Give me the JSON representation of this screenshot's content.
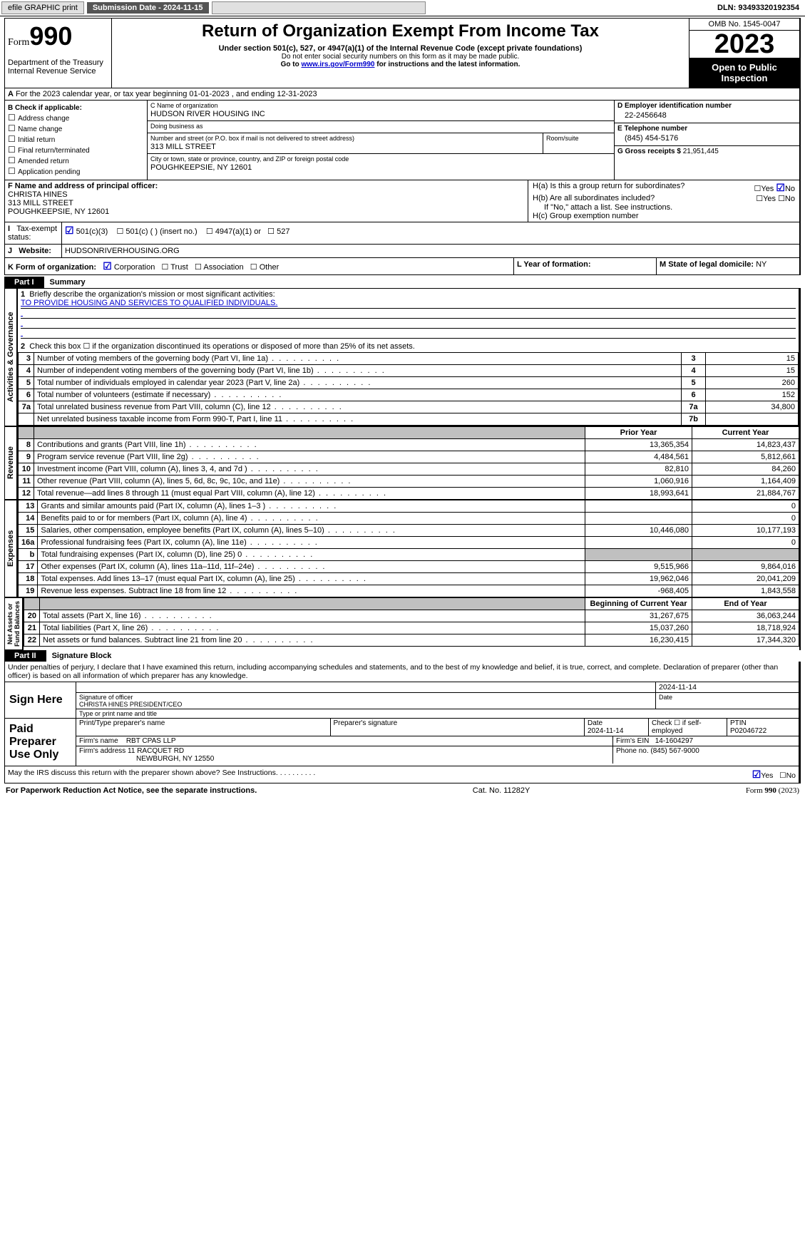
{
  "toolbar": {
    "efile": "efile GRAPHIC print",
    "submission": "Submission Date - 2024-11-15",
    "dln": "DLN: 93493320192354"
  },
  "header": {
    "form": "Form",
    "num": "990",
    "dept": "Department of the Treasury",
    "irs": "Internal Revenue Service",
    "title": "Return of Organization Exempt From Income Tax",
    "sub": "Under section 501(c), 527, or 4947(a)(1) of the Internal Revenue Code (except private foundations)",
    "warn1": "Do not enter social security numbers on this form as it may be made public.",
    "warn2pre": "Go to ",
    "warn2link": "www.irs.gov/Form990",
    "warn2post": " for instructions and the latest information.",
    "omb": "OMB No. 1545-0047",
    "year": "2023",
    "open": "Open to Public Inspection"
  },
  "A": {
    "text": "For the 2023 calendar year, or tax year beginning 01-01-2023    , and ending 12-31-2023"
  },
  "B": {
    "title": "B Check if applicable:",
    "items": [
      "Address change",
      "Name change",
      "Initial return",
      "Final return/terminated",
      "Amended return",
      "Application pending"
    ]
  },
  "C": {
    "name_lbl": "C Name of organization",
    "name": "HUDSON RIVER HOUSING INC",
    "dba_lbl": "Doing business as",
    "dba": "",
    "addr_lbl": "Number and street (or P.O. box if mail is not delivered to street address)",
    "room_lbl": "Room/suite",
    "addr": "313 MILL STREET",
    "city_lbl": "City or town, state or province, country, and ZIP or foreign postal code",
    "city": "POUGHKEEPSIE, NY  12601"
  },
  "D": {
    "lbl": "D Employer identification number",
    "val": "22-2456648"
  },
  "E": {
    "lbl": "E Telephone number",
    "val": "(845) 454-5176"
  },
  "G": {
    "lbl": "G Gross receipts $",
    "val": "21,951,445"
  },
  "F": {
    "lbl": "F  Name and address of principal officer:",
    "name": "CHRISTA HINES",
    "addr1": "313 MILL STREET",
    "addr2": "POUGHKEEPSIE, NY  12601"
  },
  "H": {
    "a": "H(a)  Is this a group return for subordinates?",
    "b": "H(b)  Are all subordinates included?",
    "note": "If \"No,\" attach a list. See instructions.",
    "c": "H(c)  Group exemption number"
  },
  "I": {
    "lbl": "Tax-exempt status:",
    "opts": [
      "501(c)(3)",
      "501(c) (  ) (insert no.)",
      "4947(a)(1) or",
      "527"
    ]
  },
  "J": {
    "lbl": "Website:",
    "val": "HUDSONRIVERHOUSING.ORG"
  },
  "K": {
    "lbl": "K Form of organization:",
    "opts": [
      "Corporation",
      "Trust",
      "Association",
      "Other"
    ]
  },
  "L": {
    "lbl": "L Year of formation:"
  },
  "M": {
    "lbl": "M State of legal domicile:",
    "val": "NY"
  },
  "partI": {
    "title": "Summary",
    "q1": "Briefly describe the organization's mission or most significant activities:",
    "mission": "TO PROVIDE HOUSING AND SERVICES TO QUALIFIED INDIVIDUALS.",
    "q2": "Check this box ☐  if the organization discontinued its operations or disposed of more than 25% of its net assets.",
    "rows_ag": [
      {
        "n": "3",
        "d": "Number of voting members of the governing body (Part VI, line 1a)",
        "b": "3",
        "v": "15"
      },
      {
        "n": "4",
        "d": "Number of independent voting members of the governing body (Part VI, line 1b)",
        "b": "4",
        "v": "15"
      },
      {
        "n": "5",
        "d": "Total number of individuals employed in calendar year 2023 (Part V, line 2a)",
        "b": "5",
        "v": "260"
      },
      {
        "n": "6",
        "d": "Total number of volunteers (estimate if necessary)",
        "b": "6",
        "v": "152"
      },
      {
        "n": "7a",
        "d": "Total unrelated business revenue from Part VIII, column (C), line 12",
        "b": "7a",
        "v": "34,800"
      },
      {
        "n": "",
        "d": "Net unrelated business taxable income from Form 990-T, Part I, line 11",
        "b": "7b",
        "v": ""
      }
    ],
    "hdr_prior": "Prior Year",
    "hdr_curr": "Current Year",
    "rows_rev": [
      {
        "n": "8",
        "d": "Contributions and grants (Part VIII, line 1h)",
        "p": "13,365,354",
        "c": "14,823,437"
      },
      {
        "n": "9",
        "d": "Program service revenue (Part VIII, line 2g)",
        "p": "4,484,561",
        "c": "5,812,661"
      },
      {
        "n": "10",
        "d": "Investment income (Part VIII, column (A), lines 3, 4, and 7d )",
        "p": "82,810",
        "c": "84,260"
      },
      {
        "n": "11",
        "d": "Other revenue (Part VIII, column (A), lines 5, 6d, 8c, 9c, 10c, and 11e)",
        "p": "1,060,916",
        "c": "1,164,409"
      },
      {
        "n": "12",
        "d": "Total revenue—add lines 8 through 11 (must equal Part VIII, column (A), line 12)",
        "p": "18,993,641",
        "c": "21,884,767"
      }
    ],
    "rows_exp": [
      {
        "n": "13",
        "d": "Grants and similar amounts paid (Part IX, column (A), lines 1–3 )",
        "p": "",
        "c": "0"
      },
      {
        "n": "14",
        "d": "Benefits paid to or for members (Part IX, column (A), line 4)",
        "p": "",
        "c": "0"
      },
      {
        "n": "15",
        "d": "Salaries, other compensation, employee benefits (Part IX, column (A), lines 5–10)",
        "p": "10,446,080",
        "c": "10,177,193"
      },
      {
        "n": "16a",
        "d": "Professional fundraising fees (Part IX, column (A), line 11e)",
        "p": "",
        "c": "0"
      },
      {
        "n": "b",
        "d": "Total fundraising expenses (Part IX, column (D), line 25) 0",
        "p": "grey",
        "c": "grey"
      },
      {
        "n": "17",
        "d": "Other expenses (Part IX, column (A), lines 11a–11d, 11f–24e)",
        "p": "9,515,966",
        "c": "9,864,016"
      },
      {
        "n": "18",
        "d": "Total expenses. Add lines 13–17 (must equal Part IX, column (A), line 25)",
        "p": "19,962,046",
        "c": "20,041,209"
      },
      {
        "n": "19",
        "d": "Revenue less expenses. Subtract line 18 from line 12",
        "p": "-968,405",
        "c": "1,843,558"
      }
    ],
    "hdr_begin": "Beginning of Current Year",
    "hdr_end": "End of Year",
    "rows_na": [
      {
        "n": "20",
        "d": "Total assets (Part X, line 16)",
        "p": "31,267,675",
        "c": "36,063,244"
      },
      {
        "n": "21",
        "d": "Total liabilities (Part X, line 26)",
        "p": "15,037,260",
        "c": "18,718,924"
      },
      {
        "n": "22",
        "d": "Net assets or fund balances. Subtract line 21 from line 20",
        "p": "16,230,415",
        "c": "17,344,320"
      }
    ]
  },
  "partII": {
    "title": "Signature Block",
    "perjury": "Under penalties of perjury, I declare that I have examined this return, including accompanying schedules and statements, and to the best of my knowledge and belief, it is true, correct, and complete. Declaration of preparer (other than officer) is based on all information of which preparer has any knowledge.",
    "sign_here": "Sign Here",
    "sig_date": "2024-11-14",
    "sig_lbl": "Signature of officer",
    "sig_name": "CHRISTA HINES  PRESIDENT/CEO",
    "sig_type_lbl": "Type or print name and title",
    "date_lbl": "Date",
    "paid": "Paid Preparer Use Only",
    "prep_name_lbl": "Print/Type preparer's name",
    "prep_sig_lbl": "Preparer's signature",
    "prep_date": "2024-11-14",
    "self_emp": "Check ☐  if self-employed",
    "ptin_lbl": "PTIN",
    "ptin": "P02046722",
    "firm_name_lbl": "Firm's name",
    "firm_name": "RBT CPAS LLP",
    "firm_ein_lbl": "Firm's EIN",
    "firm_ein": "14-1604297",
    "firm_addr_lbl": "Firm's address",
    "firm_addr1": "11 RACQUET RD",
    "firm_addr2": "NEWBURGH, NY  12550",
    "firm_phone_lbl": "Phone no.",
    "firm_phone": "(845) 567-9000",
    "discuss": "May the IRS discuss this return with the preparer shown above? See Instructions."
  },
  "footer": {
    "left": "For Paperwork Reduction Act Notice, see the separate instructions.",
    "mid": "Cat. No. 11282Y",
    "right_form": "Form 990 (2023)"
  }
}
